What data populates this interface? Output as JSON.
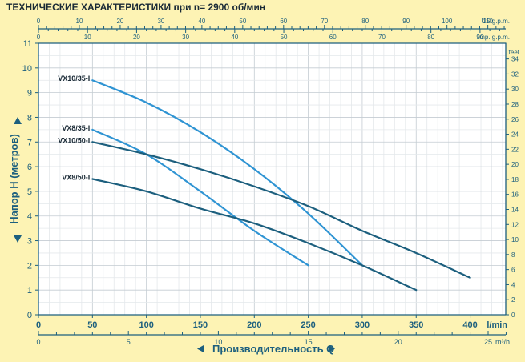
{
  "chart_data": {
    "type": "line",
    "title": "ТЕХНИЧЕСКИЕ ХАРАКТЕРИСТИКИ при n= 2900 об/мин",
    "ylabel": "Напор H (метров)",
    "xlabel": "Производительность Q",
    "x_unit": "l/min",
    "ylim": [
      0,
      11
    ],
    "xlim": [
      0,
      433
    ],
    "yticks": [
      "0",
      "1",
      "2",
      "3",
      "4",
      "5",
      "6",
      "7",
      "8",
      "9",
      "10",
      "11"
    ],
    "xticks_lmin": [
      {
        "v": 0,
        "label": "0"
      },
      {
        "v": 50,
        "label": "50"
      },
      {
        "v": 100,
        "label": "100"
      },
      {
        "v": 150,
        "label": "150"
      },
      {
        "v": 200,
        "label": "200"
      },
      {
        "v": 250,
        "label": "250"
      },
      {
        "v": 300,
        "label": "300"
      },
      {
        "v": 350,
        "label": "350"
      },
      {
        "v": 400,
        "label": "400"
      }
    ],
    "x_m3h": {
      "unit": "m³/h",
      "ticks": [
        {
          "v": 0,
          "label": "0"
        },
        {
          "v": 5,
          "label": "5"
        },
        {
          "v": 10,
          "label": "10"
        },
        {
          "v": 15,
          "label": "15"
        },
        {
          "v": 20,
          "label": "20"
        },
        {
          "v": 25,
          "label": "25"
        }
      ]
    },
    "x_usgpm": {
      "unit": "US g.p.m.",
      "ticks": [
        {
          "v": 0,
          "label": "0"
        },
        {
          "v": 10,
          "label": "10"
        },
        {
          "v": 20,
          "label": "20"
        },
        {
          "v": 30,
          "label": "30"
        },
        {
          "v": 40,
          "label": "40"
        },
        {
          "v": 50,
          "label": "50"
        },
        {
          "v": 60,
          "label": "60"
        },
        {
          "v": 70,
          "label": "70"
        },
        {
          "v": 80,
          "label": "80"
        },
        {
          "v": 90,
          "label": "90"
        },
        {
          "v": 100,
          "label": "100"
        },
        {
          "v": 110,
          "label": "110"
        }
      ]
    },
    "x_impgpm": {
      "unit": "Imp. g.p.m.",
      "ticks": [
        {
          "v": 0,
          "label": "0"
        },
        {
          "v": 10,
          "label": "10"
        },
        {
          "v": 20,
          "label": "20"
        },
        {
          "v": 30,
          "label": "30"
        },
        {
          "v": 40,
          "label": "40"
        },
        {
          "v": 50,
          "label": "50"
        },
        {
          "v": 60,
          "label": "60"
        },
        {
          "v": 70,
          "label": "70"
        },
        {
          "v": 80,
          "label": "80"
        },
        {
          "v": 90,
          "label": "90"
        }
      ]
    },
    "y_feet": {
      "unit": "feet",
      "ticks": [
        {
          "v": 0,
          "label": "0"
        },
        {
          "v": 2,
          "label": "2"
        },
        {
          "v": 4,
          "label": "4"
        },
        {
          "v": 6,
          "label": "6"
        },
        {
          "v": 8,
          "label": "8"
        },
        {
          "v": 10,
          "label": "10"
        },
        {
          "v": 12,
          "label": "12"
        },
        {
          "v": 14,
          "label": "14"
        },
        {
          "v": 16,
          "label": "16"
        },
        {
          "v": 18,
          "label": "18"
        },
        {
          "v": 20,
          "label": "20"
        },
        {
          "v": 22,
          "label": "22"
        },
        {
          "v": 24,
          "label": "24"
        },
        {
          "v": 26,
          "label": "26"
        },
        {
          "v": 28,
          "label": "28"
        },
        {
          "v": 30,
          "label": "30"
        },
        {
          "v": 32,
          "label": "32"
        },
        {
          "v": 34,
          "label": "34"
        }
      ]
    },
    "grid": true,
    "series": [
      {
        "name": "VX10/35-I",
        "color": "#2f94d3",
        "x": [
          50,
          100,
          150,
          200,
          250,
          300
        ],
        "y": [
          9.5,
          8.6,
          7.4,
          5.9,
          4.1,
          2.0
        ]
      },
      {
        "name": "VX8/35-I",
        "color": "#2f94d3",
        "x": [
          50,
          100,
          150,
          200,
          250
        ],
        "y": [
          7.5,
          6.5,
          5.0,
          3.4,
          2.0
        ]
      },
      {
        "name": "VX10/50-I",
        "color": "#1c5f7e",
        "x": [
          50,
          100,
          150,
          200,
          250,
          300,
          350,
          400
        ],
        "y": [
          7.0,
          6.5,
          5.9,
          5.2,
          4.4,
          3.4,
          2.5,
          1.5
        ]
      },
      {
        "name": "VX8/50-I",
        "color": "#1c5f7e",
        "x": [
          50,
          100,
          150,
          200,
          250,
          300,
          350
        ],
        "y": [
          5.5,
          5.0,
          4.3,
          3.7,
          2.9,
          2.0,
          1.0
        ]
      }
    ]
  }
}
